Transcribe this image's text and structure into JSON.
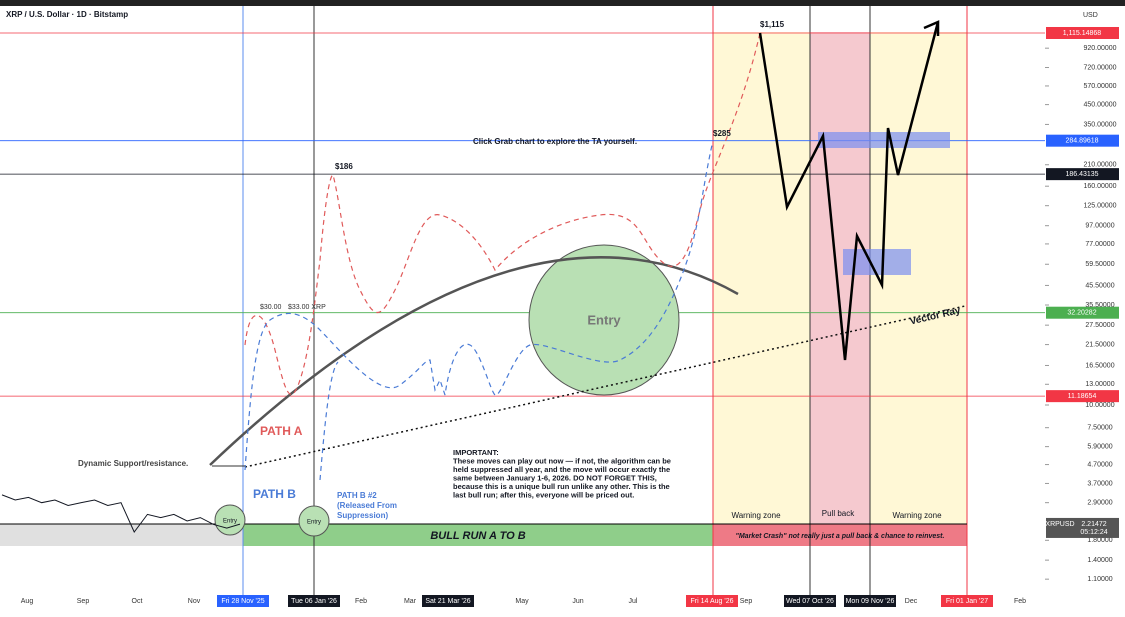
{
  "chart_data": {
    "type": "line",
    "title": "XRP / U.S. Dollar · 1D · Bitstamp",
    "y_unit": "USD",
    "log_scale": true,
    "ylim": [
      0.9,
      1570
    ],
    "yticks": [
      {
        "value": 920,
        "label": "920.00000"
      },
      {
        "value": 720,
        "label": "720.00000"
      },
      {
        "value": 570,
        "label": "570.00000"
      },
      {
        "value": 450,
        "label": "450.00000"
      },
      {
        "value": 350,
        "label": "350.00000"
      },
      {
        "value": 210,
        "label": "210.00000"
      },
      {
        "value": 160,
        "label": "160.00000"
      },
      {
        "value": 125,
        "label": "125.00000"
      },
      {
        "value": 97,
        "label": "97.00000"
      },
      {
        "value": 77,
        "label": "77.00000"
      },
      {
        "value": 59.5,
        "label": "59.50000"
      },
      {
        "value": 45.5,
        "label": "45.50000"
      },
      {
        "value": 35.5,
        "label": "35.50000"
      },
      {
        "value": 27.5,
        "label": "27.50000"
      },
      {
        "value": 21.5,
        "label": "21.50000"
      },
      {
        "value": 16.5,
        "label": "16.50000"
      },
      {
        "value": 13,
        "label": "13.00000"
      },
      {
        "value": 10,
        "label": "10.00000"
      },
      {
        "value": 7.5,
        "label": "7.50000"
      },
      {
        "value": 5.9,
        "label": "5.90000"
      },
      {
        "value": 4.7,
        "label": "4.70000"
      },
      {
        "value": 3.7,
        "label": "3.70000"
      },
      {
        "value": 2.9,
        "label": "2.90000"
      },
      {
        "value": 1.8,
        "label": "1.80000"
      },
      {
        "value": 1.4,
        "label": "1.40000"
      },
      {
        "value": 1.1,
        "label": "1.10000"
      }
    ],
    "price_labels": [
      {
        "value": 1115.14868,
        "label": "1,115.14868",
        "color": "#f23645"
      },
      {
        "value": 284.89618,
        "label": "284.89618",
        "color": "#2962ff"
      },
      {
        "value": 186.43135,
        "label": "186.43135",
        "color": "#131722"
      },
      {
        "value": 32.20282,
        "label": "32.20282",
        "color": "#4caf50"
      },
      {
        "value": 11.18654,
        "label": "11.18654",
        "color": "#f23645"
      }
    ],
    "current": {
      "name": "XRPUSD",
      "value": 2.21472,
      "label": "2.21472",
      "countdown": "05:12:24"
    },
    "x_labels": [
      "Aug",
      "Sep",
      "Oct",
      "Nov",
      "Fri 28 Nov '25",
      "Tue 06 Jan '26",
      "Feb",
      "Mar",
      "Sat 21 Mar '26",
      "May",
      "Jun",
      "Jul",
      "Fri 14 Aug '26",
      "Sep",
      "Wed 07 Oct '26",
      "Mon 09 Nov '26",
      "Dec",
      "Fri 01 Jan '27",
      "Feb"
    ],
    "series": [
      {
        "name": "XRPUSD",
        "color": "#131722",
        "values": [
          3.2,
          3.0,
          3.1,
          2.9,
          3.0,
          2.8,
          2.9,
          3.0,
          2.8,
          2.9,
          2.0,
          2.5,
          2.4,
          2.5,
          2.3,
          2.4,
          2.2,
          2.1,
          2.21
        ]
      }
    ],
    "annotations": {
      "p1115": "$1,115",
      "p285": "$285",
      "p186": "$186",
      "p30": "$30.00",
      "p33": "$33.00 XRP",
      "grab": "Click Grab chart to explore the TA yourself.",
      "entry": "Entry",
      "path_a": "PATH A",
      "path_b": "PATH B",
      "path_b2": [
        "PATH B #2",
        "(Released From",
        "Suppression)"
      ],
      "dyn": "Dynamic Support/resistance.",
      "vector": "Vector Ray",
      "important": [
        "IMPORTANT:",
        "These moves can play out now — if not, the algorithm can be",
        "held suppressed all year, and the move will occur exactly the",
        "same between January 1-6, 2026. DO NOT FORGET THIS,",
        "because this is a unique bull run unlike any other. This is the",
        "last bull run; after this, everyone will be priced out."
      ],
      "warning": "Warning zone",
      "pullback": "Pull back",
      "bullrun": "BULL RUN A TO B",
      "crash": "\"Market Crash\" not really just a pull back & chance to reinvest."
    }
  }
}
